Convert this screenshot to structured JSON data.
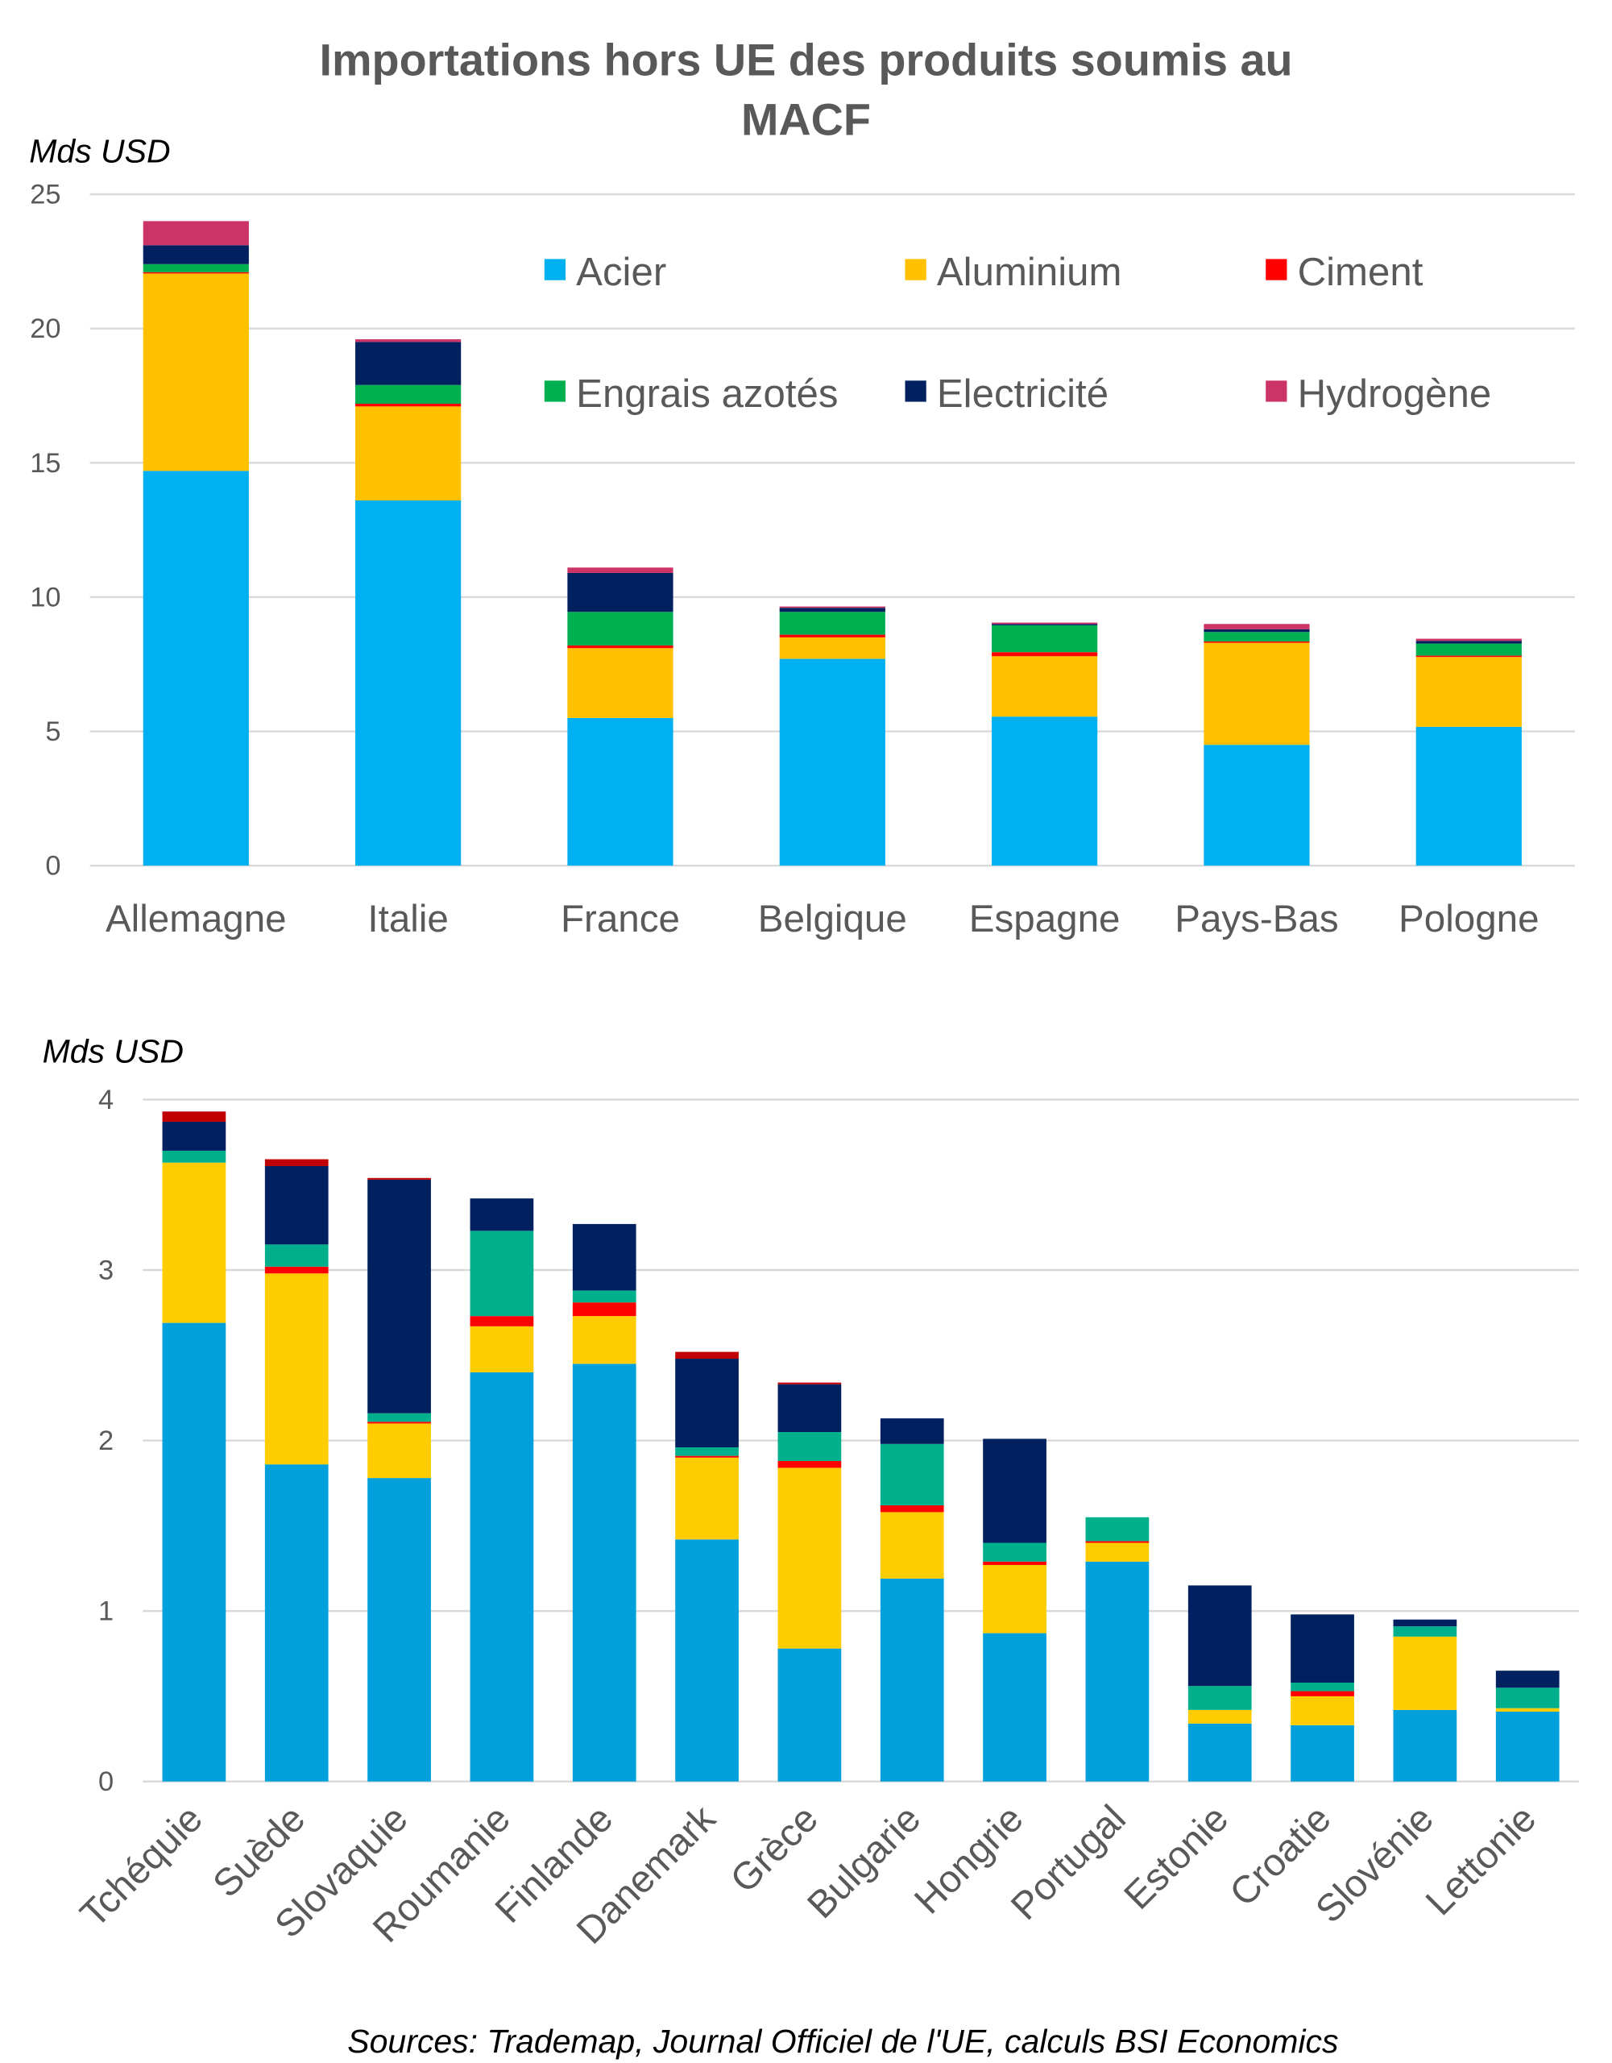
{
  "title_line1": "Importations hors UE des produits soumis au",
  "title_line2": "MACF",
  "source": "Sources: Trademap, Journal Officiel de l'UE, calculs BSI Economics",
  "chart_data": [
    {
      "type": "bar",
      "stacked": true,
      "ylabel": "Mds USD",
      "ylim": [
        0,
        25
      ],
      "yticks": [
        "0",
        "5",
        "10",
        "15",
        "20",
        "25"
      ],
      "ytick_values": [
        0,
        5,
        10,
        15,
        20,
        25
      ],
      "legend_position": "top-right",
      "grid": true,
      "categories": [
        "Allemagne",
        "Italie",
        "France",
        "Belgique",
        "Espagne",
        "Pays-Bas",
        "Pologne"
      ],
      "series": [
        {
          "name": "Acier",
          "color": "#00b0f0",
          "values": [
            14.7,
            13.6,
            5.5,
            7.7,
            5.55,
            4.5,
            5.17
          ]
        },
        {
          "name": "Aluminium",
          "color": "#ffc000",
          "values": [
            7.35,
            3.5,
            2.6,
            0.8,
            2.25,
            3.8,
            2.6
          ]
        },
        {
          "name": "Ciment",
          "color": "#ff0000",
          "values": [
            0.05,
            0.1,
            0.1,
            0.1,
            0.15,
            0.05,
            0.05
          ]
        },
        {
          "name": "Engrais azotés",
          "color": "#00b050",
          "values": [
            0.3,
            0.7,
            1.25,
            0.85,
            1.0,
            0.35,
            0.45
          ]
        },
        {
          "name": "Electricité",
          "color": "#002060",
          "values": [
            0.7,
            1.6,
            1.45,
            0.15,
            0.05,
            0.1,
            0.1
          ]
        },
        {
          "name": "Hydrogène",
          "color": "#cc3366",
          "values": [
            0.9,
            0.1,
            0.2,
            0.05,
            0.05,
            0.2,
            0.08
          ]
        }
      ]
    },
    {
      "type": "bar",
      "stacked": true,
      "ylabel": "Mds USD",
      "ylim": [
        0,
        4
      ],
      "yticks": [
        "0",
        "1",
        "2",
        "3",
        "4"
      ],
      "ytick_values": [
        0,
        1,
        2,
        3,
        4
      ],
      "grid": true,
      "categories": [
        "Tchéquie",
        "Suède",
        "Slovaquie",
        "Roumanie",
        "Finlande",
        "Danemark",
        "Grèce",
        "Bulgarie",
        "Hongrie",
        "Portugal",
        "Estonie",
        "Croatie",
        "Slovénie",
        "Lettonie"
      ],
      "series": [
        {
          "name": "Acier",
          "color": "#00a0dc",
          "values": [
            2.69,
            1.86,
            1.78,
            2.4,
            2.45,
            1.42,
            0.78,
            1.19,
            0.87,
            1.29,
            0.34,
            0.33,
            0.42,
            0.41
          ]
        },
        {
          "name": "Aluminium",
          "color": "#ffcc00",
          "values": [
            0.94,
            1.12,
            0.32,
            0.27,
            0.28,
            0.48,
            1.06,
            0.39,
            0.4,
            0.11,
            0.08,
            0.17,
            0.43,
            0.02
          ]
        },
        {
          "name": "Ciment",
          "color": "#ff0000",
          "values": [
            0.0,
            0.04,
            0.01,
            0.06,
            0.08,
            0.01,
            0.04,
            0.04,
            0.02,
            0.01,
            0.0,
            0.03,
            0.0,
            0.0
          ]
        },
        {
          "name": "Engrais azotés",
          "color": "#00b08c",
          "values": [
            0.07,
            0.13,
            0.05,
            0.5,
            0.07,
            0.05,
            0.17,
            0.36,
            0.11,
            0.14,
            0.14,
            0.05,
            0.06,
            0.12
          ]
        },
        {
          "name": "Electricité",
          "color": "#002060",
          "values": [
            0.17,
            0.46,
            1.37,
            0.19,
            0.39,
            0.52,
            0.28,
            0.15,
            0.61,
            0.0,
            0.59,
            0.4,
            0.04,
            0.1
          ]
        },
        {
          "name": "Hydrogène",
          "color": "#c00000",
          "values": [
            0.06,
            0.04,
            0.01,
            0.0,
            0.0,
            0.04,
            0.01,
            0.0,
            0.0,
            0.0,
            0.0,
            0.0,
            0.0,
            0.0
          ]
        }
      ]
    }
  ]
}
